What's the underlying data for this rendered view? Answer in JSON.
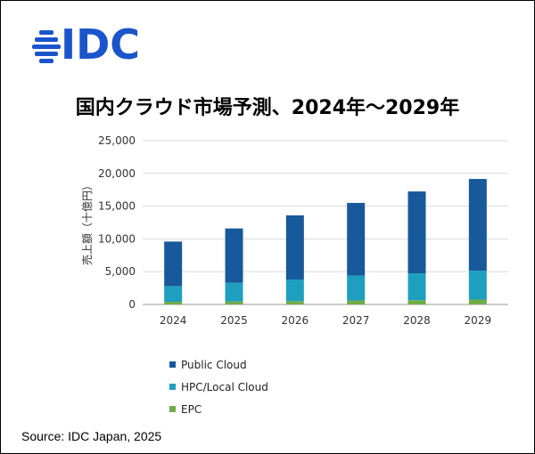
{
  "brand": {
    "logo_text": "IDC",
    "logo_color": "#1b55cc"
  },
  "source": "Source: IDC Japan, 2025",
  "chart_data": {
    "type": "bar",
    "stacked": true,
    "title": "国内クラウド市場予測、2024年～2029年",
    "ylabel": "売上額（十億円）",
    "xlabel": "",
    "categories": [
      "2024",
      "2025",
      "2026",
      "2027",
      "2028",
      "2029"
    ],
    "ylim": [
      0,
      25000
    ],
    "yticks": [
      "0",
      "5,000",
      "10,000",
      "15,000",
      "20,000",
      "25,000"
    ],
    "ytick_values": [
      0,
      5000,
      10000,
      15000,
      20000,
      25000
    ],
    "grid": true,
    "legend_position": "bottom-left",
    "series": [
      {
        "name": "EPC",
        "color": "#70ad47",
        "values": [
          400,
          450,
          500,
          600,
          650,
          750
        ]
      },
      {
        "name": "HPC/Local Cloud",
        "color": "#1f9fbf",
        "values": [
          2400,
          2850,
          3300,
          3800,
          4100,
          4400
        ]
      },
      {
        "name": "Public Cloud",
        "color": "#17599b",
        "values": [
          6800,
          8300,
          9800,
          11100,
          12500,
          14000
        ]
      }
    ],
    "legend_order": [
      "Public Cloud",
      "HPC/Local Cloud",
      "EPC"
    ]
  }
}
